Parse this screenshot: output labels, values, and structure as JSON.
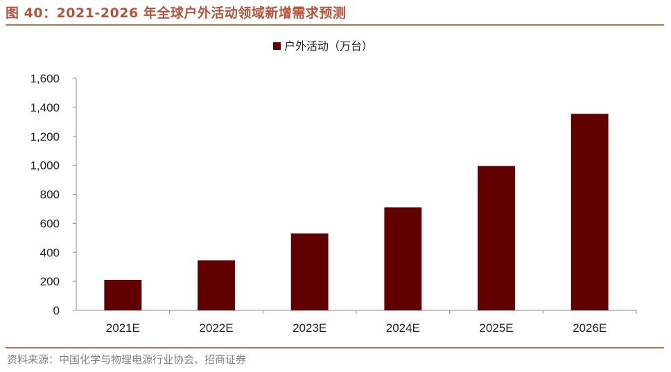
{
  "title": "图 40：2021-2026 年全球户外活动领域新增需求预测",
  "source": "资料来源：中国化学与物理电源行业协会、招商证券",
  "colors": {
    "title": "#b5533c",
    "rule": "#c0704f",
    "bar": "#600000",
    "axis": "#888888"
  },
  "chart_data": {
    "type": "bar",
    "categories": [
      "2021E",
      "2022E",
      "2023E",
      "2024E",
      "2025E",
      "2026E"
    ],
    "series": [
      {
        "name": "户外活动（万台）",
        "values": [
          210,
          345,
          530,
          710,
          995,
          1355
        ]
      }
    ],
    "ylim": [
      0,
      1600
    ],
    "yticks": [
      "0",
      "200",
      "400",
      "600",
      "800",
      "1,000",
      "1,200",
      "1,400",
      "1,600"
    ],
    "grid": false,
    "legend": "top-center"
  }
}
